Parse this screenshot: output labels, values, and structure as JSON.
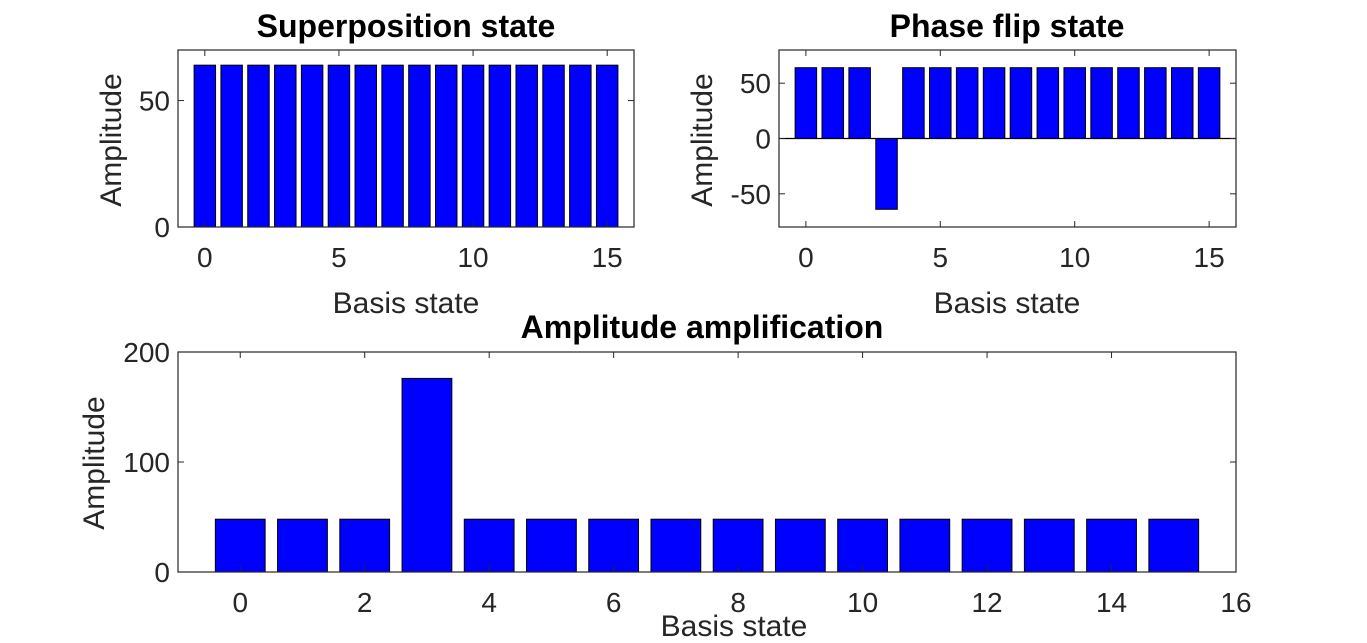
{
  "chart_data": [
    {
      "type": "bar",
      "title": "Superposition state",
      "xlabel": "Basis state",
      "ylabel": "Amplitude",
      "x": [
        0,
        1,
        2,
        3,
        4,
        5,
        6,
        7,
        8,
        9,
        10,
        11,
        12,
        13,
        14,
        15
      ],
      "values": [
        64,
        64,
        64,
        64,
        64,
        64,
        64,
        64,
        64,
        64,
        64,
        64,
        64,
        64,
        64,
        64
      ],
      "xlim": [
        -1,
        16
      ],
      "ylim": [
        0,
        70
      ],
      "xticks": [
        0,
        5,
        10,
        15
      ],
      "yticks": [
        0,
        50
      ],
      "bar_color": "#0000ff"
    },
    {
      "type": "bar",
      "title": "Phase flip state",
      "xlabel": "Basis state",
      "ylabel": "Amplitude",
      "x": [
        0,
        1,
        2,
        3,
        4,
        5,
        6,
        7,
        8,
        9,
        10,
        11,
        12,
        13,
        14,
        15
      ],
      "values": [
        64,
        64,
        64,
        -64,
        64,
        64,
        64,
        64,
        64,
        64,
        64,
        64,
        64,
        64,
        64,
        64
      ],
      "xlim": [
        -1,
        16
      ],
      "ylim": [
        -80,
        80
      ],
      "xticks": [
        0,
        5,
        10,
        15
      ],
      "yticks": [
        -50,
        0,
        50
      ],
      "bar_color": "#0000ff"
    },
    {
      "type": "bar",
      "title": "Amplitude amplification",
      "xlabel": "Basis state",
      "ylabel": "Amplitude",
      "x": [
        0,
        1,
        2,
        3,
        4,
        5,
        6,
        7,
        8,
        9,
        10,
        11,
        12,
        13,
        14,
        15
      ],
      "values": [
        48,
        48,
        48,
        176,
        48,
        48,
        48,
        48,
        48,
        48,
        48,
        48,
        48,
        48,
        48,
        48
      ],
      "xlim": [
        -1,
        16
      ],
      "ylim": [
        0,
        200
      ],
      "xticks": [
        0,
        2,
        4,
        6,
        8,
        10,
        12,
        14,
        16
      ],
      "yticks": [
        0,
        100,
        200
      ],
      "bar_color": "#0000ff"
    }
  ]
}
